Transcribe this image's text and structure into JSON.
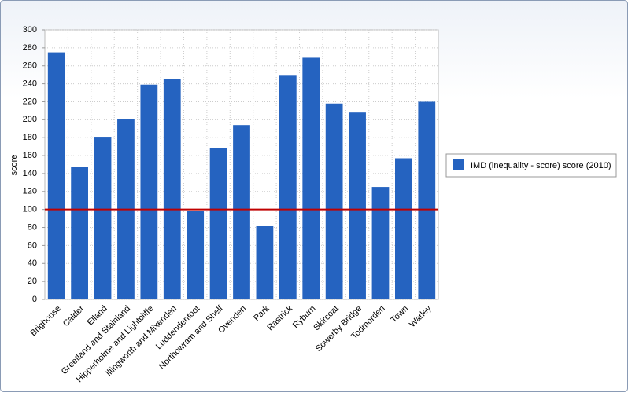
{
  "chart_data": {
    "type": "bar",
    "y_label": "score",
    "categories": [
      "Brighouse",
      "Calder",
      "Elland",
      "Greetland and Stainland",
      "Hipperholme and Lightcliffe",
      "Illingworth and Mixenden",
      "Luddendenfoot",
      "Northowram and Shelf",
      "Ovenden",
      "Park",
      "Rastrick",
      "Ryburn",
      "Skircoat",
      "Sowerby Bridge",
      "Todmorden",
      "Town",
      "Warley"
    ],
    "series": [
      {
        "name": "IMD (inequality - score) score (2010)",
        "color": "#2563c0",
        "values": [
          275,
          147,
          181,
          201,
          239,
          245,
          98,
          168,
          194,
          82,
          249,
          269,
          218,
          208,
          125,
          157,
          220
        ]
      }
    ],
    "reference_line": {
      "value": 100,
      "color": "#c00000"
    },
    "ylim": [
      0,
      300
    ],
    "yticks": [
      0,
      20,
      40,
      60,
      80,
      100,
      120,
      140,
      160,
      180,
      200,
      220,
      240,
      260,
      280,
      300
    ],
    "grid": true,
    "legend": "right"
  }
}
